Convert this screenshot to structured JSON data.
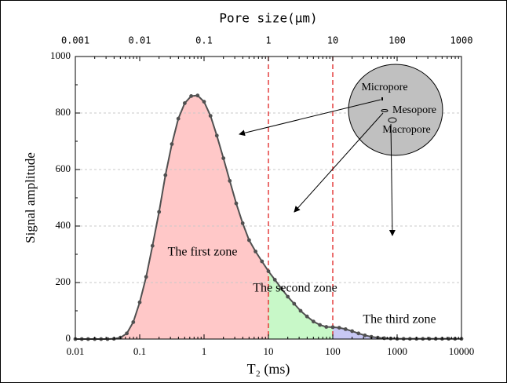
{
  "chart_data": {
    "type": "line",
    "x_label": "T₂ (ms)",
    "y_label": "Signal amplitude",
    "x2_label": "Pore size(μm)",
    "xscale": "log",
    "xlim": [
      0.01,
      10000
    ],
    "xticks": [
      0.01,
      0.1,
      1,
      10,
      100,
      1000,
      10000
    ],
    "x2lim": [
      0.001,
      1000
    ],
    "x2ticks": [
      0.001,
      0.01,
      0.1,
      1,
      10,
      100,
      1000
    ],
    "ylim": [
      0,
      1000
    ],
    "yticks": [
      0,
      200,
      400,
      600,
      800,
      1000
    ],
    "grid": true,
    "color": "#505050",
    "x": [
      0.01,
      0.0126,
      0.0158,
      0.02,
      0.0251,
      0.0316,
      0.0398,
      0.0501,
      0.0631,
      0.0794,
      0.1,
      0.126,
      0.158,
      0.2,
      0.251,
      0.316,
      0.398,
      0.501,
      0.631,
      0.794,
      1,
      1.26,
      1.58,
      2,
      2.51,
      3.16,
      3.98,
      5.01,
      6.31,
      7.94,
      10,
      12.6,
      15.8,
      20,
      25.1,
      31.6,
      39.8,
      50.1,
      63.1,
      79.4,
      100,
      126,
      158,
      200,
      251,
      316,
      398,
      501,
      631,
      794,
      1000,
      1260,
      1580,
      2000,
      2510,
      3160,
      3980,
      5010,
      6310,
      7940,
      10000
    ],
    "values": [
      0,
      0,
      0,
      0,
      0,
      0,
      1,
      5,
      20,
      60,
      130,
      220,
      330,
      450,
      580,
      690,
      780,
      835,
      860,
      862,
      840,
      790,
      720,
      640,
      560,
      480,
      410,
      350,
      310,
      275,
      240,
      210,
      180,
      150,
      125,
      100,
      80,
      62,
      50,
      43,
      42,
      40,
      35,
      28,
      20,
      13,
      8,
      5,
      3,
      2,
      1,
      1,
      1,
      1,
      1,
      1,
      1,
      1,
      1,
      1,
      1
    ],
    "zones": [
      {
        "label": "The first zone",
        "range": [
          0.01,
          10
        ],
        "color": "#ffc8c8"
      },
      {
        "label": "The second zone",
        "range": [
          10,
          100
        ],
        "color": "#c8f8c8"
      },
      {
        "label": "The third zone",
        "range": [
          100,
          10000
        ],
        "color": "#c8c8f4"
      }
    ],
    "divider_color": "#e02020",
    "annotations": [
      "Micropore",
      "Mesopore",
      "Macropore"
    ]
  }
}
